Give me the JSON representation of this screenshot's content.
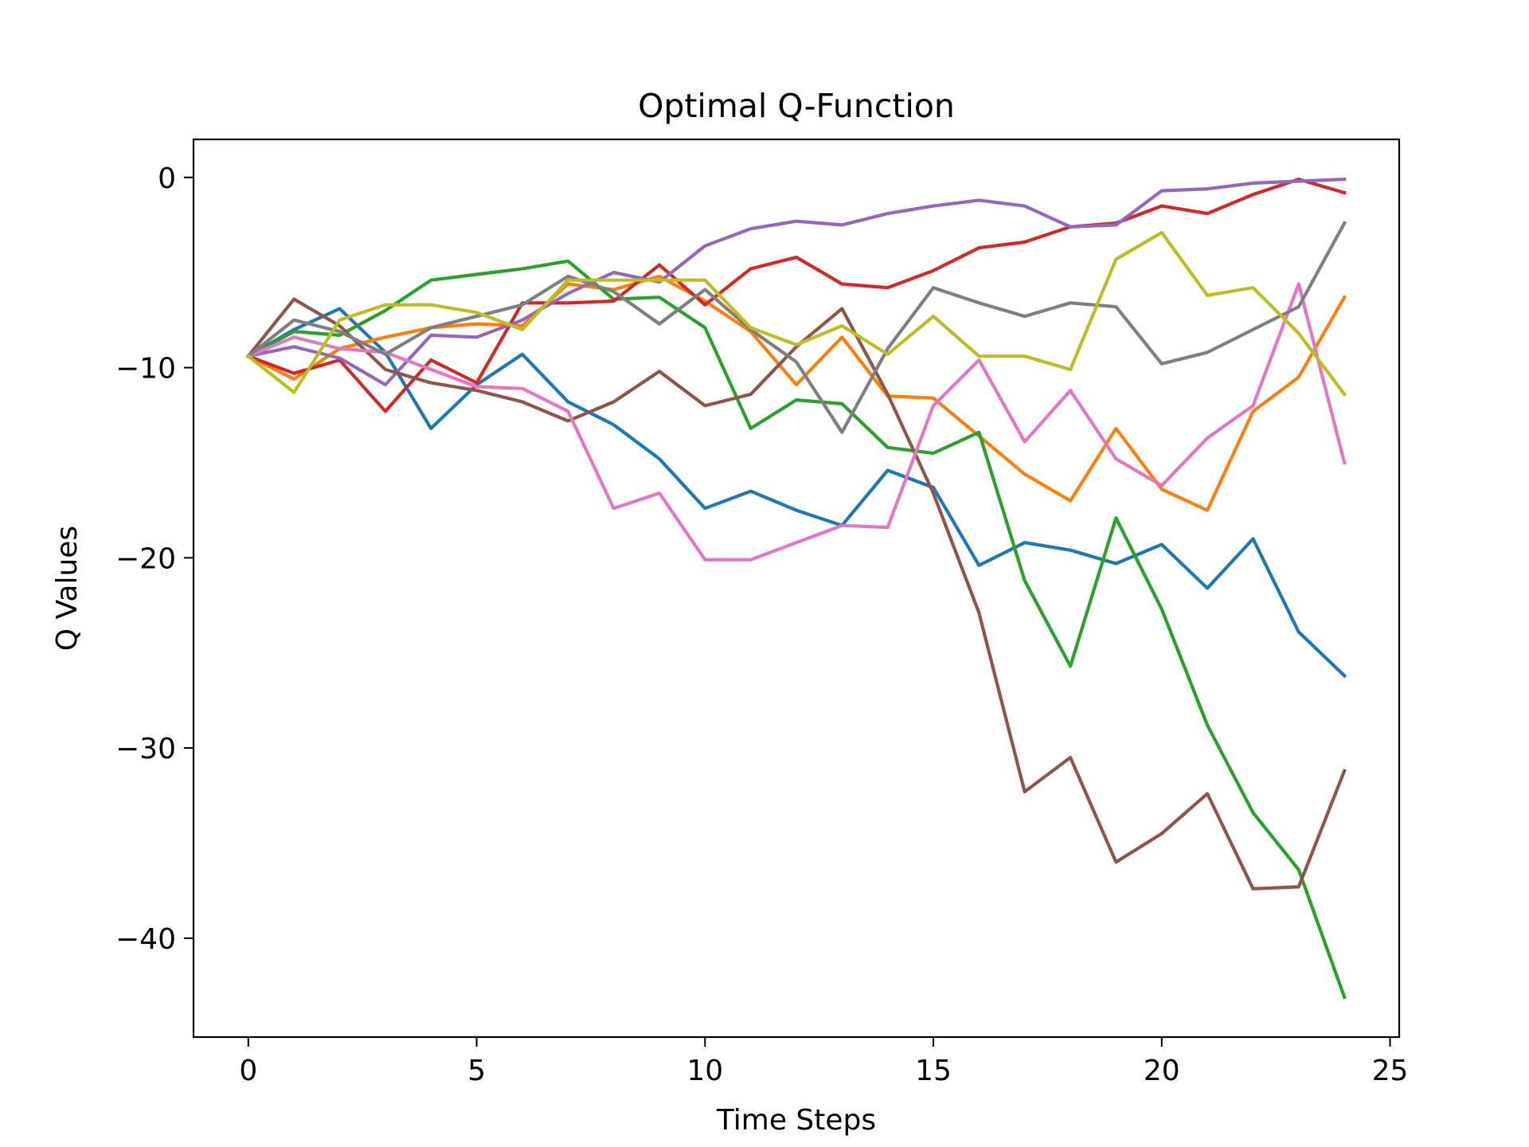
{
  "chart_data": {
    "type": "line",
    "title": "Optimal Q-Function",
    "xlabel": "Time Steps",
    "ylabel": "Q Values",
    "xlim": [
      -1.2,
      25.2
    ],
    "ylim": [
      -45.2,
      2.0
    ],
    "xticks": [
      0,
      5,
      10,
      15,
      20,
      25
    ],
    "xtick_labels": [
      "0",
      "5",
      "10",
      "15",
      "20",
      "25"
    ],
    "yticks": [
      0,
      -10,
      -20,
      -30,
      -40
    ],
    "ytick_labels": [
      "0",
      "−10",
      "−20",
      "−30",
      "−40"
    ],
    "grid": false,
    "legend": "none",
    "x": [
      0,
      1,
      2,
      3,
      4,
      5,
      6,
      7,
      8,
      9,
      10,
      11,
      12,
      13,
      14,
      15,
      16,
      17,
      18,
      19,
      20,
      21,
      22,
      23,
      24
    ],
    "series": [
      {
        "color": "#1f77b4",
        "values": [
          -9.4,
          -8.0,
          -6.9,
          -9.2,
          -13.2,
          -10.9,
          -9.3,
          -11.8,
          -13.0,
          -14.8,
          -17.4,
          -16.5,
          -17.5,
          -18.3,
          -15.4,
          -16.3,
          -20.4,
          -19.2,
          -19.6,
          -20.3,
          -19.3,
          -21.6,
          -19.0,
          -23.9,
          -26.2
        ]
      },
      {
        "color": "#ff7f0e",
        "values": [
          -9.4,
          -10.6,
          -9.0,
          -8.4,
          -7.9,
          -7.7,
          -7.8,
          -5.6,
          -5.9,
          -5.2,
          -6.5,
          -8.1,
          -10.9,
          -8.4,
          -11.5,
          -11.6,
          -13.6,
          -15.6,
          -17.0,
          -13.2,
          -16.4,
          -17.5,
          -12.3,
          -10.5,
          -6.3
        ]
      },
      {
        "color": "#2ca02c",
        "values": [
          -9.4,
          -8.1,
          -8.3,
          -7.0,
          -5.4,
          -5.1,
          -4.8,
          -4.4,
          -6.4,
          -6.3,
          -7.9,
          -13.2,
          -11.7,
          -11.9,
          -14.2,
          -14.5,
          -13.4,
          -21.2,
          -25.7,
          -17.9,
          -22.7,
          -28.8,
          -33.4,
          -36.4,
          -43.1
        ]
      },
      {
        "color": "#d62728",
        "values": [
          -9.4,
          -10.3,
          -9.6,
          -12.3,
          -9.6,
          -10.8,
          -6.6,
          -6.6,
          -6.5,
          -4.6,
          -6.7,
          -4.8,
          -4.2,
          -5.6,
          -5.8,
          -4.9,
          -3.7,
          -3.4,
          -2.6,
          -2.4,
          -1.5,
          -1.9,
          -0.9,
          -0.1,
          -0.8
        ]
      },
      {
        "color": "#9467bd",
        "values": [
          -9.4,
          -8.9,
          -9.5,
          -10.9,
          -8.3,
          -8.4,
          -7.5,
          -6.1,
          -5.0,
          -5.5,
          -3.6,
          -2.7,
          -2.3,
          -2.5,
          -1.9,
          -1.5,
          -1.2,
          -1.5,
          -2.6,
          -2.5,
          -0.7,
          -0.6,
          -0.3,
          -0.2,
          -0.1
        ]
      },
      {
        "color": "#8c564b",
        "values": [
          -9.4,
          -6.4,
          -7.8,
          -10.1,
          -10.8,
          -11.2,
          -11.8,
          -12.8,
          -11.8,
          -10.2,
          -12.0,
          -11.4,
          -8.9,
          -6.9,
          -11.4,
          -16.6,
          -22.9,
          -32.3,
          -30.5,
          -36.0,
          -34.5,
          -32.4,
          -37.4,
          -37.3,
          -31.2
        ]
      },
      {
        "color": "#e377c2",
        "values": [
          -9.4,
          -8.4,
          -9.0,
          -9.2,
          -10.1,
          -11.0,
          -11.1,
          -12.3,
          -17.4,
          -16.6,
          -20.1,
          -20.1,
          -19.2,
          -18.3,
          -18.4,
          -12.0,
          -9.6,
          -13.9,
          -11.2,
          -14.8,
          -16.2,
          -13.7,
          -12.0,
          -5.6,
          -15.0
        ]
      },
      {
        "color": "#7f7f7f",
        "values": [
          -9.4,
          -7.5,
          -8.1,
          -9.3,
          -7.9,
          -7.3,
          -6.7,
          -5.2,
          -6.0,
          -7.7,
          -5.9,
          -8.0,
          -9.7,
          -13.4,
          -9.0,
          -5.8,
          -6.6,
          -7.3,
          -6.6,
          -6.8,
          -9.8,
          -9.2,
          -8.0,
          -6.8,
          -2.4
        ]
      },
      {
        "color": "#bcbd22",
        "values": [
          -9.4,
          -11.3,
          -7.5,
          -6.7,
          -6.7,
          -7.1,
          -8.0,
          -5.4,
          -5.4,
          -5.4,
          -5.4,
          -7.9,
          -8.8,
          -7.8,
          -9.3,
          -7.3,
          -9.4,
          -9.4,
          -10.1,
          -4.3,
          -2.9,
          -6.2,
          -5.8,
          -8.2,
          -11.4
        ]
      }
    ]
  }
}
